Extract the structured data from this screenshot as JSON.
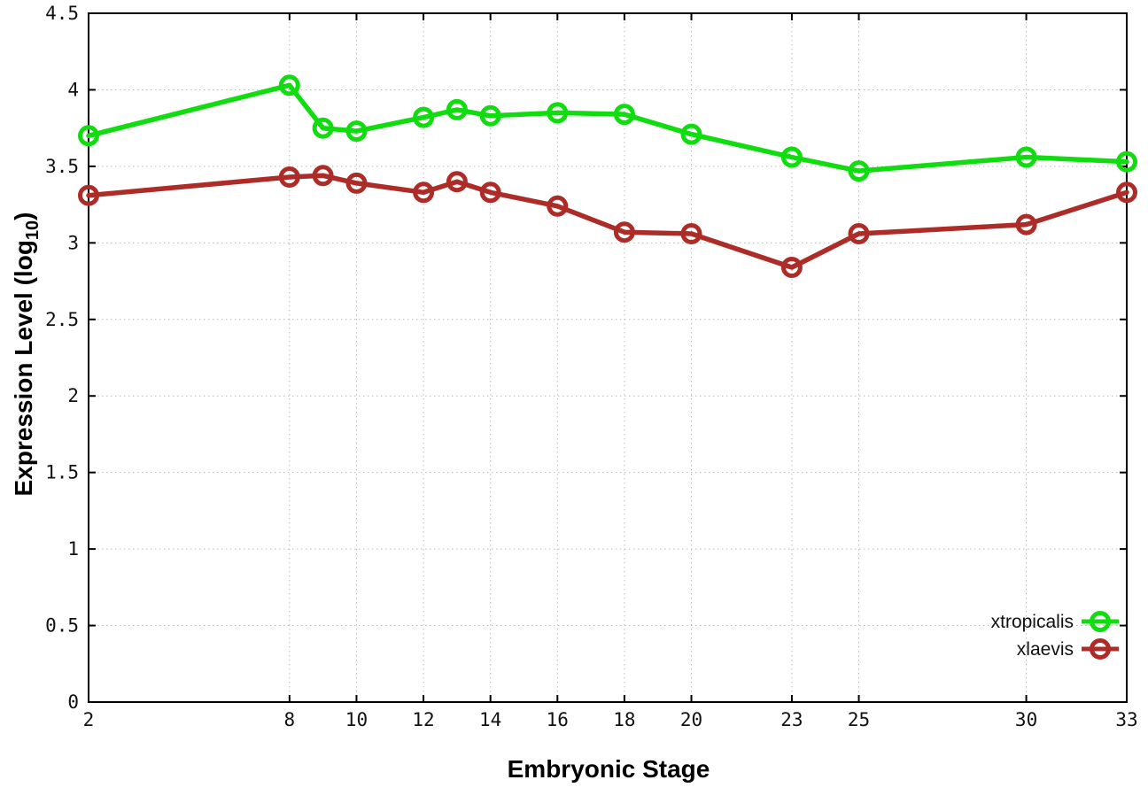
{
  "chart_data": {
    "type": "line",
    "title": "",
    "xlabel": "Embryonic Stage",
    "ylabel": "Expression Level (log10)",
    "ylabel_parts": {
      "prefix": "Expression Level (log",
      "subscript": "10",
      "suffix": ")"
    },
    "xlim": [
      2,
      33
    ],
    "ylim": [
      0,
      4.5
    ],
    "grid": true,
    "legend_position": "inside-bottom-right",
    "x": [
      2,
      8,
      9,
      10,
      12,
      13,
      14,
      16,
      18,
      20,
      23,
      25,
      30,
      33
    ],
    "xticks": {
      "values": [
        2,
        8,
        10,
        12,
        14,
        16,
        18,
        20,
        23,
        25,
        30,
        33
      ],
      "labels": [
        "2",
        "8",
        "10",
        "12",
        "14",
        "16",
        "18",
        "20",
        "23",
        "25",
        "30",
        "33"
      ]
    },
    "yticks": {
      "values": [
        0,
        0.5,
        1,
        1.5,
        2,
        2.5,
        3,
        3.5,
        4,
        4.5
      ],
      "labels": [
        "0",
        "0.5",
        "1",
        "1.5",
        "2",
        "2.5",
        "3",
        "3.5",
        "4",
        "4.5"
      ]
    },
    "series": [
      {
        "name": "xtropicalis",
        "color": "#10dc10",
        "marker": "open-circle",
        "values": [
          3.7,
          4.03,
          3.75,
          3.73,
          3.82,
          3.87,
          3.83,
          3.85,
          3.84,
          3.71,
          3.56,
          3.47,
          3.56,
          3.53
        ]
      },
      {
        "name": "xlaevis",
        "color": "#ad2c28",
        "marker": "open-circle",
        "values": [
          3.31,
          3.43,
          3.44,
          3.39,
          3.33,
          3.4,
          3.33,
          3.24,
          3.07,
          3.06,
          2.84,
          3.06,
          3.12,
          3.33
        ]
      }
    ]
  }
}
